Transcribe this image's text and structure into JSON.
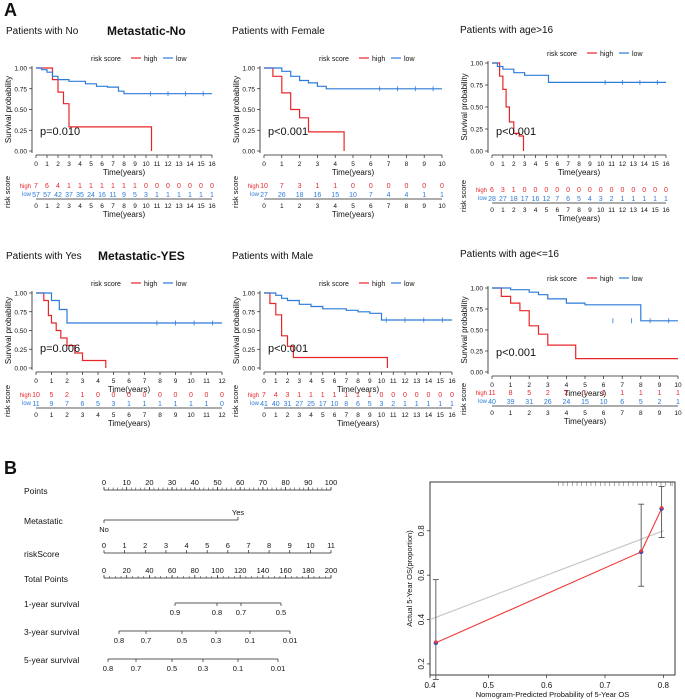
{
  "panel_a_label": "A",
  "panel_b_label": "B",
  "legend_title": "risk score",
  "legend_high": "high",
  "legend_low": "low",
  "y_axis_label": "Survival probability",
  "x_axis_label": "Time(years)",
  "risk_table_label": "risk score",
  "colors": {
    "high": "#e8262a",
    "low": "#2d7bd9",
    "axis": "#222222",
    "calib_line": "#f03a3a",
    "calib_ideal": "#c8c8c8",
    "calib_point": "#3040c0"
  },
  "chart_data": [
    {
      "type": "line",
      "title": "Patients with No",
      "heading": "Metastatic-No",
      "pvalue": "p=0.010",
      "xlim": [
        0,
        16
      ],
      "x_ticks": [
        0,
        1,
        2,
        3,
        4,
        5,
        6,
        7,
        8,
        9,
        10,
        11,
        12,
        13,
        14,
        15,
        16
      ],
      "ylim": [
        0,
        1
      ],
      "y_ticks": [
        "0.00",
        "0.25",
        "0.50",
        "0.75",
        "1.00"
      ],
      "series": [
        {
          "name": "high",
          "points": [
            [
              0,
              1
            ],
            [
              1,
              1
            ],
            [
              1.5,
              0.86
            ],
            [
              2,
              0.71
            ],
            [
              2.5,
              0.57
            ],
            [
              3,
              0.29
            ],
            [
              10.5,
              0.29
            ],
            [
              10.5,
              0
            ]
          ]
        },
        {
          "name": "low",
          "points": [
            [
              0,
              1
            ],
            [
              0.5,
              0.98
            ],
            [
              1,
              0.95
            ],
            [
              1.5,
              0.9
            ],
            [
              2,
              0.86
            ],
            [
              3,
              0.84
            ],
            [
              4.5,
              0.81
            ],
            [
              5.5,
              0.78
            ],
            [
              6.5,
              0.77
            ],
            [
              7.5,
              0.72
            ],
            [
              8,
              0.69
            ],
            [
              16,
              0.69
            ]
          ]
        }
      ],
      "risk_table": {
        "high": [
          "7",
          "6",
          "4",
          "1",
          "1",
          "1",
          "1",
          "1",
          "1",
          "1",
          "0",
          "0",
          "0",
          "0",
          "0",
          "0",
          "0"
        ],
        "low": [
          "57",
          "57",
          "42",
          "37",
          "35",
          "24",
          "16",
          "11",
          "9",
          "5",
          "3",
          "1",
          "1",
          "1",
          "1",
          "1",
          "1"
        ]
      }
    },
    {
      "type": "line",
      "title": "Patients with Female",
      "heading": "",
      "pvalue": "p<0.001",
      "xlim": [
        0,
        10
      ],
      "x_ticks": [
        0,
        1,
        2,
        3,
        4,
        5,
        6,
        7,
        8,
        9,
        10
      ],
      "ylim": [
        0,
        1
      ],
      "y_ticks": [
        "0.00",
        "0.25",
        "0.50",
        "0.75",
        "1.00"
      ],
      "series": [
        {
          "name": "high",
          "points": [
            [
              0,
              1
            ],
            [
              0.5,
              0.9
            ],
            [
              1,
              0.7
            ],
            [
              1.5,
              0.5
            ],
            [
              2,
              0.4
            ],
            [
              2.5,
              0.23
            ],
            [
              4.5,
              0.23
            ],
            [
              4.5,
              0
            ]
          ]
        },
        {
          "name": "low",
          "points": [
            [
              0,
              1
            ],
            [
              1,
              0.96
            ],
            [
              1.5,
              0.9
            ],
            [
              2,
              0.85
            ],
            [
              2.5,
              0.82
            ],
            [
              3,
              0.78
            ],
            [
              3.5,
              0.75
            ],
            [
              10,
              0.75
            ]
          ]
        }
      ],
      "risk_table": {
        "high": [
          "10",
          "7",
          "3",
          "1",
          "1",
          "0",
          "0",
          "0",
          "0",
          "0",
          "0"
        ],
        "low": [
          "27",
          "26",
          "18",
          "16",
          "15",
          "10",
          "7",
          "4",
          "4",
          "1",
          "1"
        ]
      }
    },
    {
      "type": "line",
      "title": "Patients with age>16",
      "heading": "",
      "pvalue": "p<0.001",
      "xlim": [
        0,
        16
      ],
      "x_ticks": [
        0,
        1,
        2,
        3,
        4,
        5,
        6,
        7,
        8,
        9,
        10,
        11,
        12,
        13,
        14,
        15,
        16
      ],
      "ylim": [
        0,
        1
      ],
      "y_ticks": [
        "0.00",
        "0.25",
        "0.50",
        "0.75",
        "1.00"
      ],
      "series": [
        {
          "name": "high",
          "points": [
            [
              0,
              1
            ],
            [
              0.7,
              0.85
            ],
            [
              1,
              0.7
            ],
            [
              1.3,
              0.5
            ],
            [
              1.6,
              0.33
            ],
            [
              2,
              0.2
            ],
            [
              2.5,
              0.17
            ],
            [
              2.9,
              0.17
            ],
            [
              2.9,
              0
            ]
          ]
        },
        {
          "name": "low",
          "points": [
            [
              0,
              1
            ],
            [
              0.5,
              0.96
            ],
            [
              1,
              0.93
            ],
            [
              2,
              0.89
            ],
            [
              3,
              0.86
            ],
            [
              5,
              0.86
            ],
            [
              5.2,
              0.78
            ],
            [
              16,
              0.78
            ]
          ]
        }
      ],
      "risk_table": {
        "high": [
          "6",
          "3",
          "1",
          "0",
          "0",
          "0",
          "0",
          "0",
          "0",
          "0",
          "0",
          "0",
          "0",
          "0",
          "0",
          "0",
          "0"
        ],
        "low": [
          "28",
          "27",
          "18",
          "17",
          "16",
          "12",
          "7",
          "6",
          "5",
          "4",
          "3",
          "2",
          "1",
          "1",
          "1",
          "1",
          "1"
        ]
      }
    },
    {
      "type": "line",
      "title": "Patients with Yes",
      "heading": "Metastatic-YES",
      "pvalue": "p=0.006",
      "xlim": [
        0,
        12
      ],
      "x_ticks": [
        0,
        1,
        2,
        3,
        4,
        5,
        6,
        7,
        8,
        9,
        10,
        11,
        12
      ],
      "ylim": [
        0,
        1
      ],
      "y_ticks": [
        "0.00",
        "0.25",
        "0.50",
        "0.75",
        "1.00"
      ],
      "series": [
        {
          "name": "high",
          "points": [
            [
              0,
              1
            ],
            [
              0.5,
              0.9
            ],
            [
              0.8,
              0.7
            ],
            [
              1,
              0.6
            ],
            [
              1.3,
              0.5
            ],
            [
              1.6,
              0.4
            ],
            [
              2,
              0.3
            ],
            [
              2.5,
              0.2
            ],
            [
              3,
              0.1
            ],
            [
              4.5,
              0.1
            ],
            [
              4.5,
              0
            ]
          ]
        },
        {
          "name": "low",
          "points": [
            [
              0,
              1
            ],
            [
              0.5,
              1
            ],
            [
              1,
              0.9
            ],
            [
              1.5,
              0.78
            ],
            [
              2,
              0.6
            ],
            [
              12,
              0.6
            ]
          ]
        }
      ],
      "risk_table": {
        "high": [
          "10",
          "5",
          "2",
          "1",
          "0",
          "0",
          "0",
          "0",
          "0",
          "0",
          "0",
          "0",
          "0"
        ],
        "low": [
          "11",
          "9",
          "7",
          "6",
          "5",
          "3",
          "1",
          "1",
          "1",
          "1",
          "1",
          "1",
          "0"
        ]
      }
    },
    {
      "type": "line",
      "title": "Patients with Male",
      "heading": "",
      "pvalue": "p<0.001",
      "xlim": [
        0,
        16
      ],
      "x_ticks": [
        0,
        1,
        2,
        3,
        4,
        5,
        6,
        7,
        8,
        9,
        10,
        11,
        12,
        13,
        14,
        15,
        16
      ],
      "ylim": [
        0,
        1
      ],
      "y_ticks": [
        "0.00",
        "0.25",
        "0.50",
        "0.75",
        "1.00"
      ],
      "series": [
        {
          "name": "high",
          "points": [
            [
              0,
              1
            ],
            [
              0.5,
              0.86
            ],
            [
              1,
              0.71
            ],
            [
              1.5,
              0.43
            ],
            [
              2,
              0.29
            ],
            [
              2.5,
              0.14
            ],
            [
              10.5,
              0.14
            ],
            [
              10.5,
              0
            ]
          ]
        },
        {
          "name": "low",
          "points": [
            [
              0,
              1
            ],
            [
              1,
              0.97
            ],
            [
              1.5,
              0.93
            ],
            [
              2,
              0.9
            ],
            [
              3,
              0.85
            ],
            [
              4,
              0.82
            ],
            [
              5,
              0.79
            ],
            [
              7,
              0.77
            ],
            [
              8,
              0.75
            ],
            [
              9,
              0.73
            ],
            [
              10,
              0.64
            ],
            [
              16,
              0.64
            ]
          ]
        }
      ],
      "risk_table": {
        "high": [
          "7",
          "4",
          "3",
          "1",
          "1",
          "1",
          "1",
          "1",
          "1",
          "1",
          "0",
          "0",
          "0",
          "0",
          "0",
          "0",
          "0"
        ],
        "low": [
          "41",
          "40",
          "31",
          "27",
          "25",
          "17",
          "10",
          "8",
          "6",
          "5",
          "3",
          "2",
          "1",
          "1",
          "1",
          "1",
          "1"
        ]
      }
    },
    {
      "type": "line",
      "title": "Patients with age<=16",
      "heading": "",
      "pvalue": "p<0.001",
      "xlim": [
        0,
        10
      ],
      "x_ticks": [
        0,
        1,
        2,
        3,
        4,
        5,
        6,
        7,
        8,
        9,
        10
      ],
      "ylim": [
        0,
        1
      ],
      "y_ticks": [
        "0.00",
        "0.25",
        "0.50",
        "0.75",
        "1.00"
      ],
      "series": [
        {
          "name": "high",
          "points": [
            [
              0,
              1
            ],
            [
              0.5,
              0.9
            ],
            [
              1,
              0.82
            ],
            [
              1.5,
              0.73
            ],
            [
              2,
              0.55
            ],
            [
              2.5,
              0.45
            ],
            [
              3,
              0.32
            ],
            [
              4.5,
              0.32
            ],
            [
              4.5,
              0.16
            ],
            [
              10,
              0.16
            ]
          ]
        },
        {
          "name": "low",
          "points": [
            [
              0,
              1
            ],
            [
              1,
              0.98
            ],
            [
              2,
              0.95
            ],
            [
              2.5,
              0.92
            ],
            [
              3,
              0.87
            ],
            [
              4,
              0.82
            ],
            [
              5,
              0.8
            ],
            [
              8,
              0.75
            ],
            [
              8,
              0.61
            ],
            [
              10,
              0.61
            ]
          ]
        }
      ],
      "risk_table": {
        "high": [
          "11",
          "8",
          "5",
          "2",
          "2",
          "1",
          "1",
          "1",
          "1",
          "1",
          "1"
        ],
        "low": [
          "40",
          "39",
          "31",
          "26",
          "24",
          "15",
          "10",
          "6",
          "5",
          "2",
          "1"
        ]
      }
    },
    {
      "type": "line",
      "title": "",
      "xlabel": "Nomogram-Predicted Probability of 5-Year OS",
      "ylabel": "Actual 5-Year OS(proportion)",
      "xlim": [
        0.4,
        0.82
      ],
      "ylim": [
        0.15,
        1.02
      ],
      "x_ticks": [
        "0.4",
        "0.5",
        "0.6",
        "0.7",
        "0.8"
      ],
      "y_ticks": [
        "0.2",
        "0.4",
        "0.6",
        "0.8"
      ],
      "ideal_line": [
        [
          0.4,
          0.4
        ],
        [
          0.8,
          0.8
        ]
      ],
      "series": [
        {
          "name": "calibration",
          "x": [
            0.41,
            0.762,
            0.797
          ],
          "y": [
            0.295,
            0.705,
            0.9
          ]
        }
      ],
      "error_bars": [
        {
          "x": 0.41,
          "low": 0.13,
          "high": 0.58
        },
        {
          "x": 0.762,
          "low": 0.55,
          "high": 0.92
        },
        {
          "x": 0.797,
          "low": 0.77,
          "high": 1.0
        }
      ]
    }
  ],
  "nomogram": {
    "rows": [
      {
        "label": "Points",
        "ticks": [
          "0",
          "10",
          "20",
          "30",
          "40",
          "50",
          "60",
          "70",
          "80",
          "90",
          "100"
        ]
      },
      {
        "label": "Metastatic",
        "ticks": [
          "No",
          "Yes"
        ]
      },
      {
        "label": "riskScore",
        "ticks": [
          "0",
          "1",
          "2",
          "3",
          "4",
          "5",
          "6",
          "7",
          "8",
          "9",
          "10",
          "11"
        ]
      },
      {
        "label": "Total Points",
        "ticks": [
          "0",
          "20",
          "40",
          "60",
          "80",
          "100",
          "120",
          "140",
          "160",
          "180",
          "200"
        ]
      },
      {
        "label": "1-year survival",
        "ticks": [
          "0.9",
          "0.8",
          "0.7",
          "0.5"
        ]
      },
      {
        "label": "3-year survival",
        "ticks": [
          "0.8",
          "0.7",
          "0.5",
          "0.3",
          "0.1",
          "0.01"
        ]
      },
      {
        "label": "5-year survival",
        "ticks": [
          "0.8",
          "0.7",
          "0.5",
          "0.3",
          "0.1",
          "0.01"
        ]
      }
    ]
  }
}
